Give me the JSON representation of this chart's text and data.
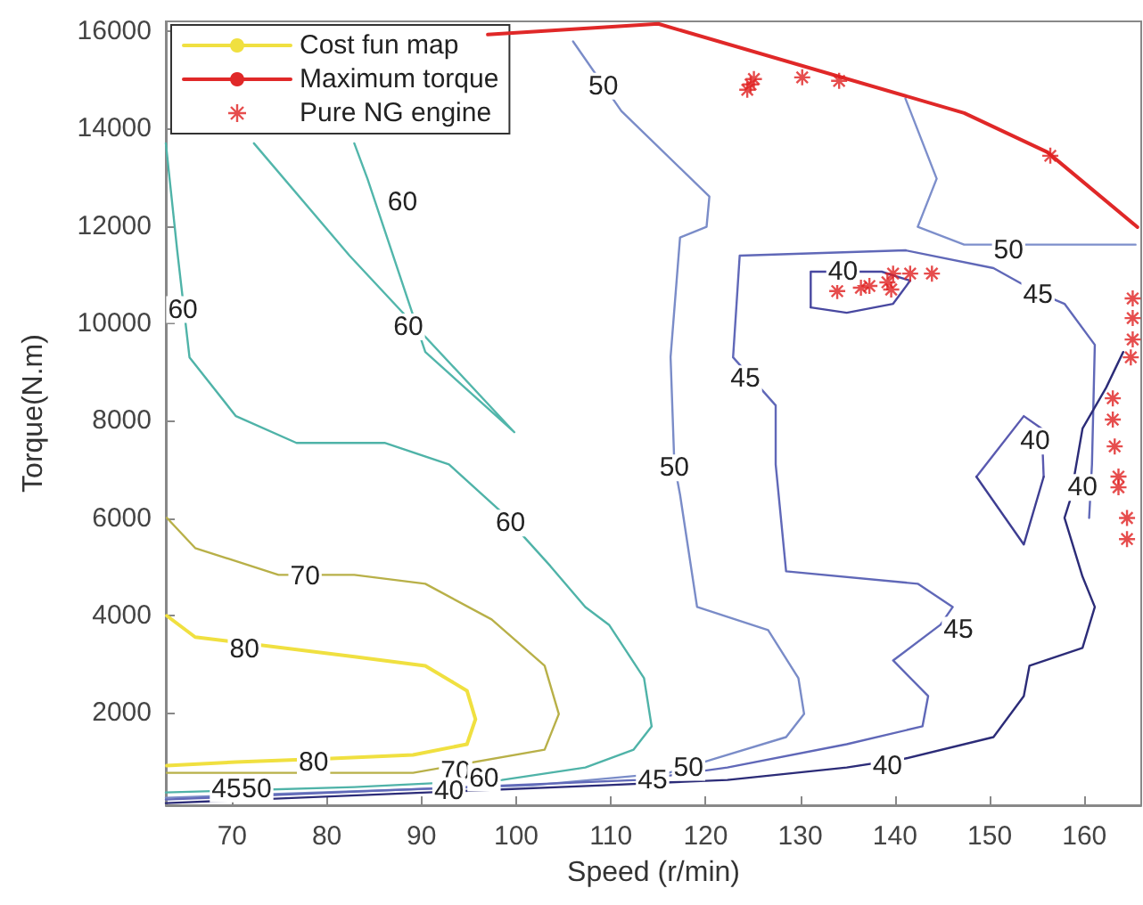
{
  "chart_data": {
    "type": "line",
    "xlabel": "Speed (r/min)",
    "ylabel": "Torque(N.m)",
    "xlim": [
      63,
      166
    ],
    "xticks": [
      70,
      80,
      90,
      100,
      110,
      120,
      130,
      140,
      150,
      160
    ],
    "ylim": [
      100,
      16200
    ],
    "yticks": [
      2000,
      4000,
      6000,
      8000,
      10000,
      12000,
      14000,
      16000
    ],
    "legend": "top left",
    "marker": "none",
    "series": [
      {
        "name": "Cost fun map",
        "color": "#f0e040",
        "x": [
          63.1,
          66.1,
          82.9,
          90.4,
          94.8,
          95.7,
          94.8,
          89.1,
          80.5,
          70.4,
          63.1
        ],
        "values": [
          3992,
          3553,
          3150,
          2964,
          2452,
          1866,
          1353,
          1133,
          1060,
          986,
          913
        ]
      },
      {
        "color": "#b8b048",
        "x": [
          63.1,
          66.1,
          74.9,
          82.9,
          90.4,
          97.4,
          103.0,
          104.5,
          103.0,
          89.1,
          76.8,
          63.1
        ],
        "values": [
          6004,
          5382,
          4832,
          4832,
          4649,
          3916,
          2964,
          1974,
          1242,
          766,
          766,
          766
        ]
      },
      {
        "color": "#4fb3a8",
        "x": [
          63.0,
          64.2,
          65.5,
          70.4,
          76.8,
          86.1,
          92.9,
          98.5,
          103.6,
          107.3,
          109.8,
          113.5,
          114.3,
          112.4,
          107.3,
          98.5,
          82.9,
          63.0
        ],
        "values": [
          13696,
          11498,
          9300,
          8092,
          7542,
          7542,
          7102,
          6113,
          5014,
          4172,
          3806,
          2708,
          1719,
          1242,
          876,
          620,
          473,
          363
        ]
      },
      {
        "color": "#52b6ab",
        "x": [
          72.3,
          82.4,
          99.8,
          90.4,
          84.3,
          82.9
        ],
        "values": [
          13696,
          11388,
          7762,
          9410,
          12963,
          13696
        ]
      },
      {
        "color": "#7a8cc8",
        "x": [
          106.0,
          111.1,
          120.4,
          120.1,
          117.3,
          116.3,
          116.7,
          117.3,
          119.1,
          126.6,
          129.8,
          130.4,
          128.5,
          121.0,
          116.1,
          101.7,
          63.0
        ],
        "values": [
          15789,
          14360,
          12602,
          11980,
          11760,
          9306,
          7102,
          6480,
          4172,
          3696,
          2708,
          1975,
          1500,
          1060,
          766,
          510,
          253
        ]
      },
      {
        "color": "#7d8fcb",
        "x": [
          141.1,
          144.4,
          142.4,
          147.3,
          165.4
        ],
        "values": [
          14616,
          12968,
          11980,
          11614,
          11614
        ]
      },
      {
        "color": "#6068b8",
        "x": [
          160.5,
          160.8,
          161.1,
          157.9,
          154.8,
          150.4,
          141.1,
          123.6,
          122.9,
          127.4,
          127.4,
          128.5,
          142.4,
          146.1,
          144.8,
          139.8,
          143.5,
          142.9,
          134.9,
          122.3,
          112.9,
          63.0
        ],
        "values": [
          6000,
          7102,
          9556,
          10399,
          10656,
          11132,
          11498,
          11388,
          9300,
          8312,
          7102,
          4905,
          4649,
          4173,
          3807,
          3074,
          2342,
          1720,
          1353,
          876,
          620,
          217
        ]
      },
      {
        "color": "#4848a0",
        "x": [
          131.1,
          131.1,
          138.6,
          141.6
        ],
        "values": [
          10326,
          11059,
          11059,
          10875
        ]
      },
      {
        "color": "#4848a0",
        "x": [
          131.1,
          134.9,
          139.8,
          141.6
        ],
        "values": [
          10326,
          10216,
          10399,
          10875
        ]
      },
      {
        "color": "#5a5ab0",
        "x": [
          148.6,
          153.6,
          155.5,
          155.7
        ],
        "values": [
          6847,
          8093,
          7835,
          6847
        ]
      },
      {
        "color": "#3e3e92",
        "x": [
          148.6,
          153.6,
          155.7
        ],
        "values": [
          6847,
          5455,
          6847
        ]
      },
      {
        "color": "#2c2c78",
        "x": [
          164.1,
          162.3,
          159.8,
          158.5,
          157.9,
          159.8,
          161.1,
          159.8,
          154.2,
          153.6,
          150.4,
          141.1,
          134.9,
          122.3,
          109.2,
          63.0
        ],
        "values": [
          9410,
          8678,
          7835,
          6371,
          6004,
          4796,
          4173,
          3331,
          2964,
          2342,
          1500,
          1060,
          876,
          620,
          510,
          143
        ]
      },
      {
        "name": "Maximum torque",
        "color": "#e02828",
        "x": [
          97.0,
          115.0,
          147.3,
          156.1,
          165.6
        ],
        "values": [
          15930,
          16150,
          14318,
          13513,
          11975
        ]
      },
      {
        "name": "Pure NG engine",
        "type": "scatter",
        "marker": "cross",
        "color": "#e02020",
        "x": [
          124.75,
          125.1,
          124.4,
          130.2,
          134.1,
          156.4,
          133.9,
          136.4,
          137.3,
          139.2,
          139.8,
          141.6,
          143.9,
          139.6,
          165.1,
          165.1,
          165.1,
          164.9,
          163.0,
          163.0,
          163.2,
          163.6,
          163.6,
          164.5,
          164.5
        ],
        "values": [
          14905,
          15015,
          14795,
          15050,
          14978,
          13440,
          10660,
          10730,
          10765,
          10840,
          11020,
          11020,
          11020,
          10693,
          10509,
          10106,
          9667,
          9300,
          8458,
          8021,
          7470,
          6850,
          6630,
          6000,
          5567
        ]
      }
    ],
    "annotations": [
      {
        "text": "60",
        "x": 64.8,
        "y": 10281
      },
      {
        "text": "60",
        "x": 88.0,
        "y": 12492
      },
      {
        "text": "60",
        "x": 88.6,
        "y": 9923
      },
      {
        "text": "60",
        "x": 99.4,
        "y": 5894
      },
      {
        "text": "70",
        "x": 77.7,
        "y": 4796
      },
      {
        "text": "80",
        "x": 71.3,
        "y": 3296
      },
      {
        "text": "80",
        "x": 78.6,
        "y": 986
      },
      {
        "text": "45",
        "x": 69.4,
        "y": 435
      },
      {
        "text": "50",
        "x": 72.6,
        "y": 435
      },
      {
        "text": "70",
        "x": 93.6,
        "y": 803
      },
      {
        "text": "60",
        "x": 96.6,
        "y": 656
      },
      {
        "text": "40",
        "x": 92.9,
        "y": 400
      },
      {
        "text": "50",
        "x": 109.2,
        "y": 14868
      },
      {
        "text": "50",
        "x": 152.0,
        "y": 11498
      },
      {
        "text": "45",
        "x": 155.1,
        "y": 10583
      },
      {
        "text": "40",
        "x": 134.5,
        "y": 11059
      },
      {
        "text": "45",
        "x": 124.2,
        "y": 8861
      },
      {
        "text": "40",
        "x": 154.8,
        "y": 7578
      },
      {
        "text": "40",
        "x": 159.8,
        "y": 6628
      },
      {
        "text": "50",
        "x": 116.7,
        "y": 7029
      },
      {
        "text": "45",
        "x": 146.7,
        "y": 3697
      },
      {
        "text": "40",
        "x": 139.2,
        "y": 913
      },
      {
        "text": "45",
        "x": 114.4,
        "y": 620
      },
      {
        "text": "50",
        "x": 118.2,
        "y": 876
      }
    ]
  }
}
